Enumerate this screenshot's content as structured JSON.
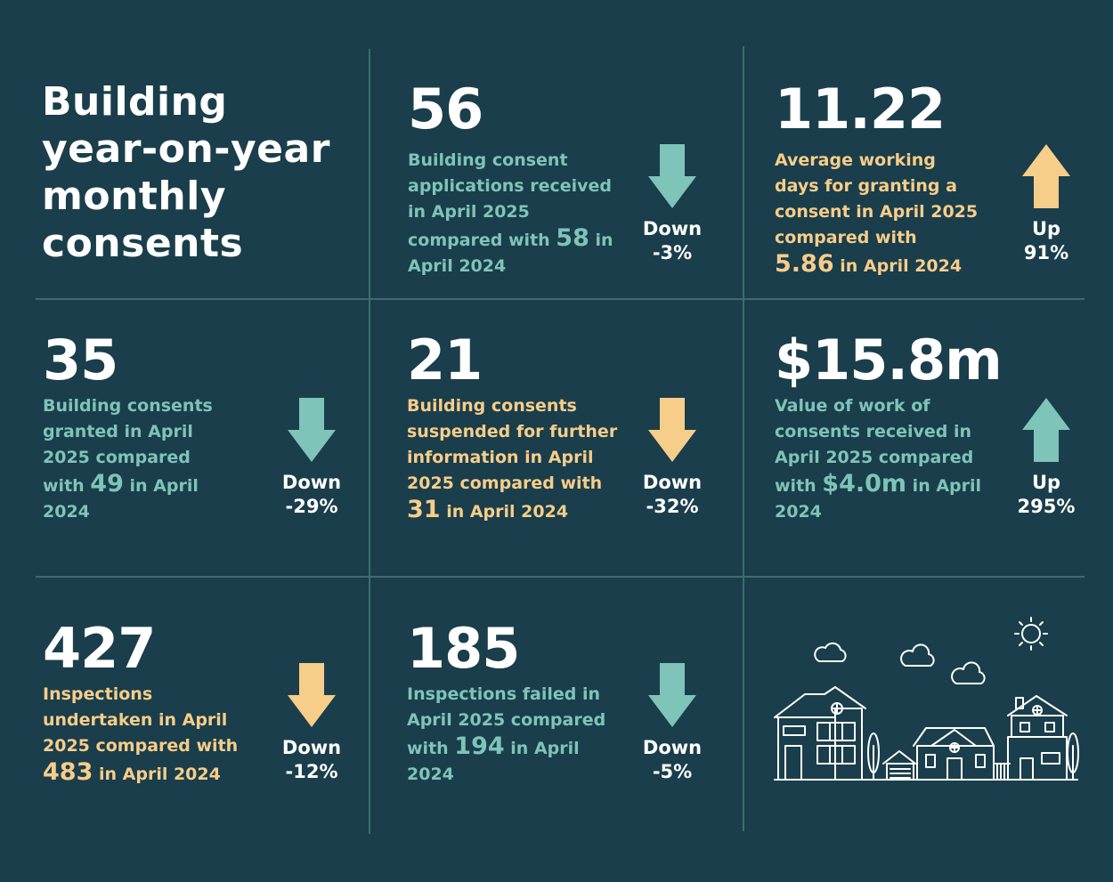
{
  "title": "Building\nyear-on-year\nmonthly\nconsents",
  "cells": [
    {
      "big": "56",
      "text_before": "Building consent applications received in April 2025 compared with ",
      "highlight": "58",
      "text_after": " in April 2024",
      "direction": "Down",
      "change": "-3%",
      "color": "#7ec4b8"
    },
    {
      "big": "11.22",
      "text_before": "Average working days for granting a consent in April 2025 compared with ",
      "highlight": "5.86",
      "text_after": " in April 2024",
      "direction": "Up",
      "change": "91%",
      "color": "#f7cd8a"
    },
    {
      "big": "35",
      "text_before": "Building consents granted in April 2025 compared with ",
      "highlight": "49",
      "text_after": " in April 2024",
      "direction": "Down",
      "change": "-29%",
      "color": "#7ec4b8"
    },
    {
      "big": "21",
      "text_before": "Building consents suspended for further information in April 2025 compared with ",
      "highlight": "31",
      "text_after": " in April 2024",
      "direction": "Down",
      "change": "-32%",
      "color": "#f7cd8a"
    },
    {
      "big": "$15.8m",
      "text_before": "Value of work of consents received in April 2025 compared with ",
      "highlight": "$4.0m",
      "text_after": " in April 2024",
      "direction": "Up",
      "change": "295%",
      "color": "#7ec4b8"
    },
    {
      "big": "427",
      "text_before": "Inspections undertaken in April 2025 compared with ",
      "highlight": "483",
      "text_after": " in April 2024",
      "direction": "Down",
      "change": "-12%",
      "color": "#f7cd8a"
    },
    {
      "big": "185",
      "text_before": "Inspections failed in April 2025 compared with ",
      "highlight": "194",
      "text_after": " in April 2024",
      "direction": "Down",
      "change": "-5%",
      "color": "#7ec4b8"
    }
  ],
  "illustration": {
    "icons": [
      "houses-illustration",
      "sun-icon",
      "cloud-icon",
      "tree-icon"
    ]
  }
}
